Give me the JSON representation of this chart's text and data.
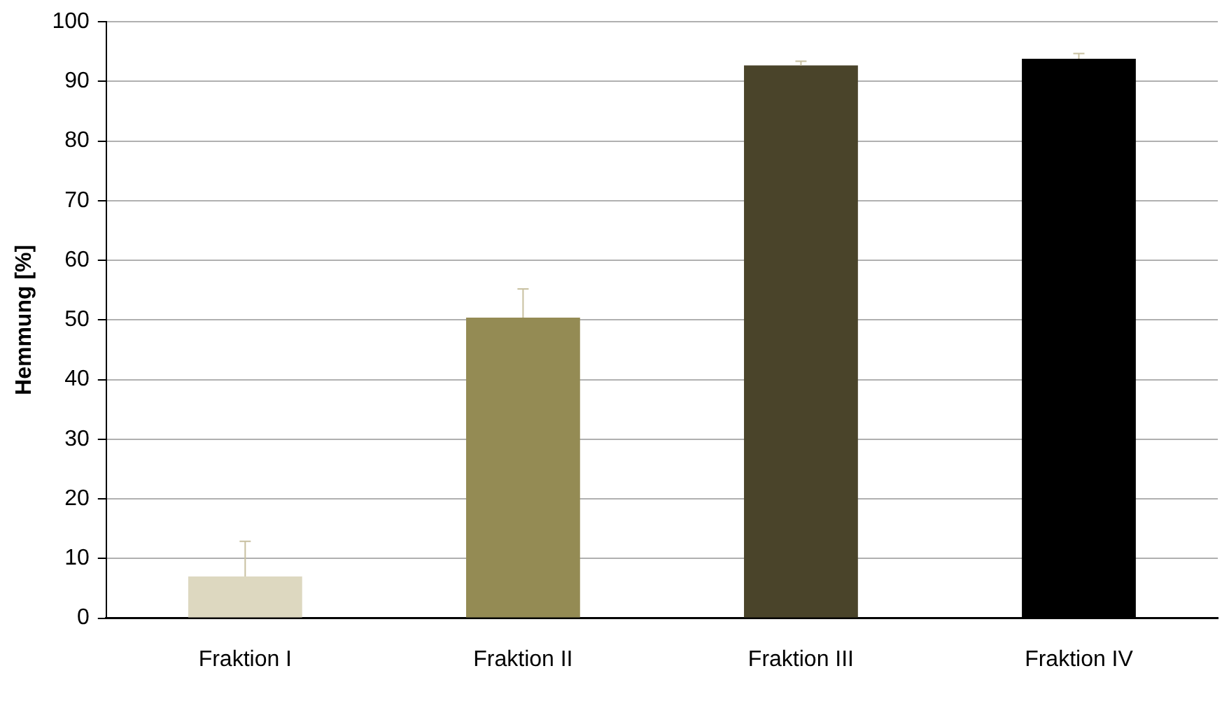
{
  "chart_data": {
    "type": "bar",
    "ylabel": "Hemmung [%]",
    "categories": [
      "Fraktion I",
      "Fraktion II",
      "Fraktion III",
      "Fraktion IV"
    ],
    "values": [
      7.0,
      50.4,
      92.7,
      93.8
    ],
    "colors": [
      "#ddd8c0",
      "#948b54",
      "#4a442a",
      "#000000"
    ],
    "errors": [
      [
        7.0,
        12.9
      ],
      [
        50.4,
        55.2
      ],
      [
        92.7,
        93.4
      ],
      [
        93.8,
        94.7
      ]
    ],
    "ylim": [
      0,
      100
    ],
    "yticks": [
      0,
      10,
      20,
      30,
      40,
      50,
      60,
      70,
      80,
      90,
      100
    ],
    "grid": "y",
    "legend": false
  }
}
